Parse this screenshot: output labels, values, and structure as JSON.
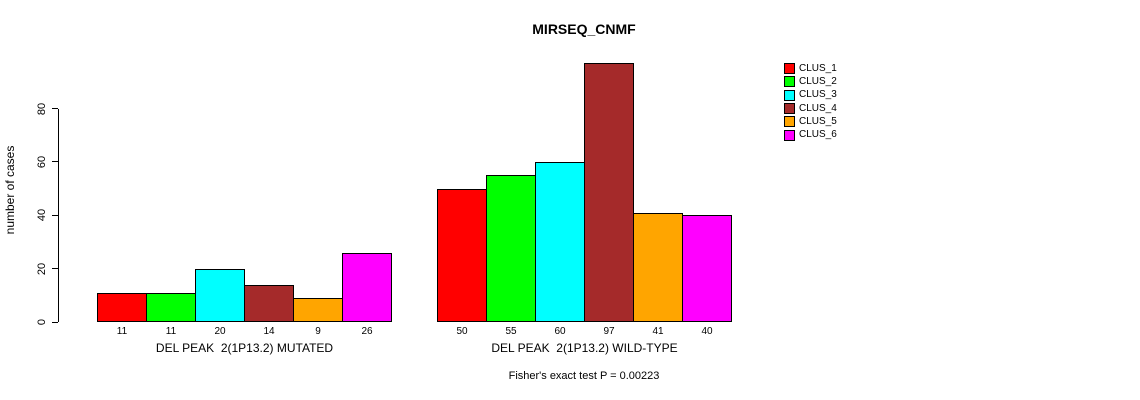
{
  "chart_data": {
    "type": "bar",
    "title": "MIRSEQ_CNMF",
    "ylabel": "number of cases",
    "yticks": [
      0,
      20,
      40,
      60,
      80
    ],
    "ylim": [
      0,
      100
    ],
    "grid": false,
    "legend_position": "top-right",
    "series": [
      {
        "name": "CLUS_1",
        "color": "#FF0000"
      },
      {
        "name": "CLUS_2",
        "color": "#00FF00"
      },
      {
        "name": "CLUS_3",
        "color": "#00FFFF"
      },
      {
        "name": "CLUS_4",
        "color": "#A52A2A"
      },
      {
        "name": "CLUS_5",
        "color": "#FFA500"
      },
      {
        "name": "CLUS_6",
        "color": "#FF00FF"
      }
    ],
    "groups": [
      {
        "label": "DEL PEAK  2(1P13.2) MUTATED",
        "values": [
          11,
          11,
          20,
          14,
          9,
          26
        ]
      },
      {
        "label": "DEL PEAK  2(1P13.2) WILD-TYPE",
        "values": [
          50,
          55,
          60,
          97,
          41,
          40
        ]
      }
    ],
    "annotation": "Fisher's exact test P = 0.00223"
  }
}
